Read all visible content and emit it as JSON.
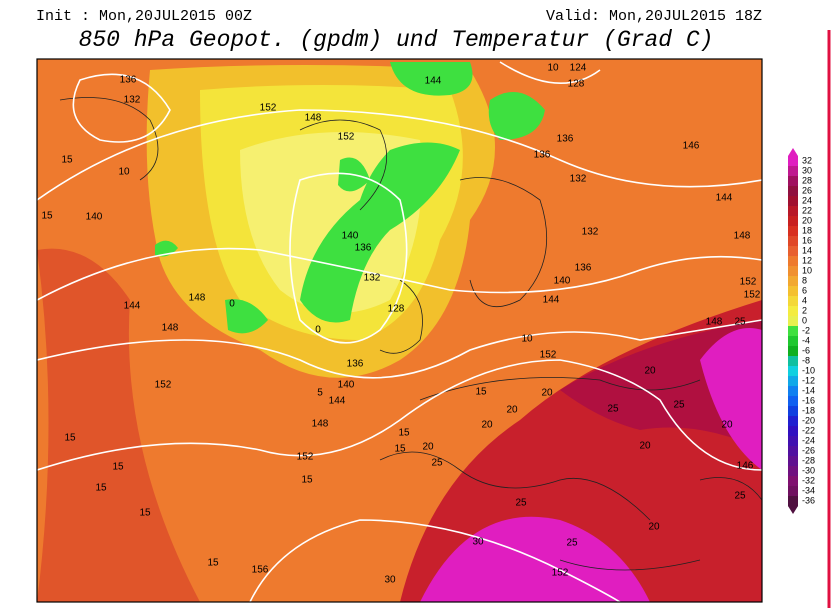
{
  "header": {
    "init": "Init : Mon,20JUL2015 00Z",
    "valid": "Valid: Mon,20JUL2015 18Z",
    "title": "850 hPa Geopot. (gpdm) und Temperatur (Grad C)"
  },
  "colorbar": {
    "labels": [
      32,
      30,
      28,
      26,
      24,
      22,
      20,
      18,
      16,
      14,
      12,
      10,
      8,
      6,
      4,
      2,
      0,
      -2,
      -4,
      -6,
      -8,
      -10,
      -12,
      -14,
      -16,
      -18,
      -20,
      -22,
      -24,
      -26,
      -28,
      -30,
      -32,
      -34,
      -36
    ]
  },
  "map": {
    "labels": [
      "136",
      "132",
      "152",
      "148",
      "152",
      "144",
      "124",
      "128",
      "10",
      "136",
      "136",
      "132",
      "146",
      "144",
      "132",
      "140",
      "136",
      "144",
      "148",
      "152",
      "152",
      "148",
      "25",
      "140",
      "144",
      "148",
      "148",
      "140",
      "136",
      "132",
      "128",
      "136",
      "140",
      "144",
      "148",
      "152",
      "152",
      "152",
      "156",
      "152",
      "146",
      "15",
      "15",
      "10",
      "15",
      "15",
      "15",
      "15",
      "15",
      "15",
      "15",
      "15",
      "20",
      "25",
      "20",
      "20",
      "20",
      "25",
      "20",
      "25",
      "20",
      "20",
      "25",
      "20",
      "25",
      "30",
      "25",
      "30",
      "15",
      "10",
      "0",
      "0",
      "5"
    ]
  }
}
